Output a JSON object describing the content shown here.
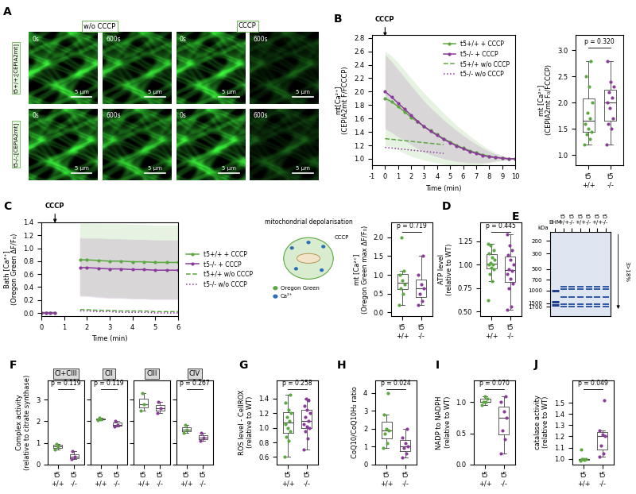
{
  "image_panel": {
    "panel": "A",
    "columns": [
      "w/o CCCP",
      "CCCP"
    ],
    "times": [
      "0s",
      "600s"
    ],
    "rows": [
      "t5+/+;[CEPIA2mt]",
      "t5-/-;[CEPIA2mt]"
    ],
    "scale_bar": "5 µm"
  },
  "schematic": {
    "title": "mitochondrial depolarisation",
    "treatment": "CCCP",
    "legend": [
      "Oregon Green",
      "Ca²⁺"
    ]
  },
  "gel": {
    "panel": "E",
    "unit": "kDa",
    "ylim": [
      150,
      2300
    ],
    "ladder": [
      1700,
      1500,
      1000,
      700,
      500,
      300,
      200
    ],
    "lanes": [
      "BHM",
      "t5\n+/+",
      "t5\n-/-",
      "t5\n+/+",
      "t5\n-/-",
      "t5\n+/+",
      "t5\n-/-"
    ],
    "gradient": "3>18%",
    "marker_bands": [
      1600,
      1450,
      1000
    ],
    "sample_bands": [
      1700,
      1550,
      1250,
      950,
      880
    ]
  },
  "chart_data": [
    {
      "type": "line",
      "panel": "B",
      "xlabel": "Time (min)",
      "ylabel": "mt[Ca²⁺]\n(CEPIA2mt F/FCCCP)",
      "xlim": [
        -1,
        10
      ],
      "xticks": [
        -1,
        0,
        1,
        2,
        3,
        4,
        5,
        6,
        7,
        8,
        9,
        10
      ],
      "ylim": [
        0.9,
        2.85
      ],
      "yticks": [
        1.0,
        1.2,
        1.4,
        1.6,
        1.8,
        2.0,
        2.2,
        2.4,
        2.6,
        2.8
      ],
      "legend": "upper right",
      "annotations": [
        {
          "text": "CCCP",
          "x": 0
        }
      ],
      "x": [
        0,
        0.5,
        1,
        1.5,
        2,
        2.5,
        3,
        3.5,
        4,
        4.5,
        5,
        5.5,
        6,
        6.5,
        7,
        7.5,
        8,
        8.5,
        9,
        9.5,
        10
      ],
      "series": [
        {
          "name": "t5+/+ + CCCP",
          "color": "#5aa83f",
          "line_style": "solid",
          "marker": "circle",
          "values": [
            1.9,
            1.85,
            1.78,
            1.7,
            1.62,
            1.55,
            1.48,
            1.42,
            1.36,
            1.3,
            1.25,
            1.2,
            1.16,
            1.12,
            1.09,
            1.06,
            1.04,
            1.02,
            1.01,
            1.0,
            1.0
          ],
          "sd": [
            0.7,
            0.68,
            0.65,
            0.62,
            0.58,
            0.54,
            0.5,
            0.46,
            0.42,
            0.38,
            0.34,
            0.3,
            0.26,
            0.22,
            0.18,
            0.14,
            0.1,
            0.07,
            0.04,
            0.02,
            0.0
          ]
        },
        {
          "name": "t5-/- + CCCP",
          "color": "#8b3a9c",
          "line_style": "solid",
          "marker": "circle",
          "values": [
            2.0,
            1.92,
            1.83,
            1.74,
            1.65,
            1.56,
            1.48,
            1.41,
            1.35,
            1.29,
            1.24,
            1.19,
            1.15,
            1.11,
            1.08,
            1.05,
            1.03,
            1.02,
            1.01,
            1.0,
            1.0
          ],
          "sd": [
            0.55,
            0.53,
            0.5,
            0.47,
            0.44,
            0.41,
            0.38,
            0.35,
            0.32,
            0.29,
            0.26,
            0.23,
            0.2,
            0.17,
            0.14,
            0.11,
            0.08,
            0.05,
            0.03,
            0.02,
            0.0
          ]
        },
        {
          "name": "t5+/+ w/o CCCP",
          "color": "#5aa83f",
          "line_style": "dashed",
          "values": [
            1.3,
            1.29,
            1.28,
            1.27,
            1.26,
            1.25,
            1.24,
            1.23,
            1.22,
            1.21,
            null,
            null,
            null,
            null,
            null,
            null,
            null,
            null,
            null,
            null,
            null
          ]
        },
        {
          "name": "t5-/- w/o CCCP",
          "color": "#8b3a9c",
          "line_style": "dotted",
          "values": [
            1.17,
            1.16,
            1.15,
            1.14,
            1.13,
            1.12,
            1.11,
            1.1,
            1.09,
            1.08,
            null,
            null,
            null,
            null,
            null,
            null,
            null,
            null,
            null,
            null,
            null
          ]
        }
      ]
    },
    {
      "type": "box",
      "ylabel": "mt [Ca²⁺]\n(CEPIA2mt F₀/FCCCP)",
      "ylim": [
        0.8,
        3.3
      ],
      "yticks": [
        1.0,
        1.5,
        2.0,
        2.5,
        3.0
      ],
      "p_label": "p = 0.320",
      "groups": [
        {
          "name": "t5\n+/+",
          "color": "#5aa83f",
          "values": [
            1.2,
            1.3,
            1.4,
            1.45,
            1.5,
            1.6,
            1.7,
            1.8,
            2.0,
            2.3,
            2.5,
            2.8
          ]
        },
        {
          "name": "t5\n-/-",
          "color": "#8b3a9c",
          "values": [
            1.2,
            1.5,
            1.6,
            1.7,
            1.9,
            2.0,
            2.1,
            2.2,
            2.3,
            2.4,
            2.8
          ]
        }
      ]
    },
    {
      "type": "line",
      "panel": "C",
      "xlabel": "Time (min)",
      "ylabel": "Bath [Ca²⁺]\n(Oregon Green ΔF/F₀)",
      "xlim": [
        0,
        6
      ],
      "xticks": [
        0,
        1,
        2,
        3,
        4,
        5,
        6
      ],
      "ylim": [
        -0.05,
        1.4
      ],
      "yticks": [
        0.0,
        0.2,
        0.4,
        0.6,
        0.8,
        1.0,
        1.2,
        1.4
      ],
      "legend": "right",
      "annotations": [
        {
          "text": "CCCP",
          "x": 0.6
        }
      ],
      "x": [
        0,
        0.2,
        0.4,
        0.6,
        1.0,
        1.7,
        2,
        2.5,
        3,
        3.5,
        4,
        4.5,
        5,
        5.5,
        6
      ],
      "series": [
        {
          "name": "t5+/+ + CCCP",
          "color": "#5aa83f",
          "line_style": "solid",
          "marker": "circle",
          "values": [
            0,
            0,
            0,
            0,
            null,
            0.82,
            0.82,
            0.81,
            0.8,
            0.8,
            0.79,
            0.79,
            0.78,
            0.78,
            0.78
          ],
          "sd": [
            0.02,
            0.02,
            0.02,
            0.02,
            null,
            0.55,
            0.56,
            0.56,
            0.57,
            0.57,
            0.57,
            0.57,
            0.57,
            0.57,
            0.57
          ]
        },
        {
          "name": "t5-/- + CCCP",
          "color": "#8b3a9c",
          "line_style": "solid",
          "marker": "circle",
          "values": [
            0,
            0,
            0,
            0,
            null,
            0.7,
            0.7,
            0.69,
            0.68,
            0.68,
            0.67,
            0.67,
            0.66,
            0.66,
            0.66
          ],
          "sd": [
            0.02,
            0.02,
            0.02,
            0.02,
            null,
            0.45,
            0.45,
            0.46,
            0.46,
            0.46,
            0.46,
            0.46,
            0.46,
            0.46,
            0.46
          ]
        },
        {
          "name": "t5+/+ w/o CCCP",
          "color": "#5aa83f",
          "line_style": "dashed",
          "values": [
            null,
            null,
            null,
            null,
            null,
            0.05,
            0.05,
            0.04,
            0.04,
            0.03,
            0.03,
            0.03,
            0.02,
            0.02,
            0.02
          ]
        },
        {
          "name": "t5-/- w/o CCCP",
          "color": "#8b3a9c",
          "line_style": "dotted",
          "values": [
            null,
            null,
            null,
            null,
            null,
            0.03,
            0.03,
            0.02,
            0.02,
            0.01,
            0.01,
            0.01,
            0.0,
            0.0,
            0.0
          ]
        }
      ]
    },
    {
      "type": "box",
      "ylabel": "mt [Ca²⁺]\n(Oregon Green max ΔF/F₀)",
      "ylim": [
        -0.1,
        2.4
      ],
      "yticks": [
        0.0,
        0.5,
        1.0,
        1.5,
        2.0
      ],
      "p_label": "p = 0.719",
      "groups": [
        {
          "name": "t5\n+/+",
          "color": "#5aa83f",
          "values": [
            0.2,
            0.5,
            0.65,
            0.75,
            0.85,
            1.0,
            1.1,
            2.0
          ]
        },
        {
          "name": "t5\n-/-",
          "color": "#8b3a9c",
          "values": [
            0.2,
            0.3,
            0.5,
            0.65,
            0.75,
            1.0,
            1.5
          ]
        }
      ]
    },
    {
      "type": "box",
      "panel": "D",
      "ylabel": "ATP level\n(relative to WT)",
      "ylim": [
        0.45,
        1.45
      ],
      "yticks": [
        {
          "value": 0.5,
          "label": "0.50"
        },
        {
          "value": 0.75,
          "label": "0.75"
        },
        {
          "value": 1.0,
          "label": "1.00"
        },
        {
          "value": 1.25,
          "label": "1.25"
        }
      ],
      "p_label": "p = 0.445",
      "groups": [
        {
          "name": "t5\n+/+",
          "color": "#5aa83f",
          "values": [
            0.62,
            0.82,
            0.9,
            0.95,
            0.97,
            1.0,
            1.0,
            1.02,
            1.05,
            1.08,
            1.12,
            1.15,
            1.2,
            1.22
          ]
        },
        {
          "name": "t5\n-/-",
          "color": "#8b3a9c",
          "values": [
            0.52,
            0.55,
            0.75,
            0.8,
            0.85,
            0.9,
            0.93,
            0.95,
            1.0,
            1.05,
            1.1,
            1.15,
            1.2,
            1.32
          ]
        }
      ]
    },
    {
      "type": "box",
      "panel": "F",
      "ylabel": "Complex activity\n(relative to citrate synthase)",
      "ylim": [
        0,
        3.9
      ],
      "yticks": [
        0,
        1,
        2,
        3
      ],
      "facets": [
        {
          "title": "CI+CIII",
          "p_label": "p = 0.119",
          "groups": [
            {
              "name": "t5\n+/+",
              "color": "#5aa83f",
              "values": [
                0.7,
                0.85,
                0.95
              ]
            },
            {
              "name": "t5\n-/-",
              "color": "#8b3a9c",
              "values": [
                0.25,
                0.35,
                0.6
              ]
            }
          ]
        },
        {
          "title": "CII",
          "p_label": "p = 0.119",
          "groups": [
            {
              "name": "t5\n+/+",
              "color": "#5aa83f",
              "values": [
                2.05,
                2.1,
                2.15
              ]
            },
            {
              "name": "t5\n-/-",
              "color": "#8b3a9c",
              "values": [
                1.75,
                1.85,
                2.0
              ]
            }
          ]
        },
        {
          "title": "CIII",
          "groups": [
            {
              "name": "t5\n+/+",
              "color": "#5aa83f",
              "values": [
                2.5,
                2.8,
                3.3
              ]
            },
            {
              "name": "t5\n-/-",
              "color": "#8b3a9c",
              "values": [
                2.4,
                2.6,
                2.9
              ]
            }
          ]
        },
        {
          "title": "CIV",
          "p_label": "p = 0.267",
          "groups": [
            {
              "name": "t5\n+/+",
              "color": "#5aa83f",
              "values": [
                1.45,
                1.6,
                1.85
              ]
            },
            {
              "name": "t5\n-/-",
              "color": "#8b3a9c",
              "values": [
                1.1,
                1.25,
                1.45
              ]
            }
          ]
        }
      ]
    },
    {
      "type": "box",
      "panel": "G",
      "ylabel": "ROS level - CellROX\n(relative to WT)",
      "ylim": [
        0.5,
        1.65
      ],
      "yticks": [
        0.6,
        0.8,
        1.0,
        1.2,
        1.4
      ],
      "p_label": "p = 0.258",
      "groups": [
        {
          "name": "t5\n+/+",
          "color": "#5aa83f",
          "values": [
            0.6,
            0.82,
            0.88,
            0.95,
            1.0,
            1.05,
            1.1,
            1.15,
            1.2,
            1.25,
            1.35,
            1.45
          ]
        },
        {
          "name": "t5\n-/-",
          "color": "#8b3a9c",
          "values": [
            0.7,
            0.85,
            0.95,
            1.0,
            1.02,
            1.05,
            1.1,
            1.15,
            1.2,
            1.25,
            1.3,
            1.38,
            1.4
          ]
        }
      ]
    },
    {
      "type": "box",
      "panel": "H",
      "ylabel": "CoQ10/CoQ10H₂ ratio",
      "ylim": [
        0,
        4.7
      ],
      "yticks": [
        0,
        1,
        2,
        3,
        4
      ],
      "p_label": "p = 0.024",
      "groups": [
        {
          "name": "t5\n+/+",
          "color": "#5aa83f",
          "values": [
            0.9,
            1.2,
            1.7,
            1.9,
            2.0,
            2.8,
            4.0
          ]
        },
        {
          "name": "t5\n-/-",
          "color": "#8b3a9c",
          "values": [
            0.4,
            0.6,
            0.9,
            1.0,
            1.2,
            1.5,
            2.0
          ]
        }
      ]
    },
    {
      "type": "box",
      "panel": "I",
      "ylabel": "NADP to NADPH\n(relative to WT)",
      "ylim": [
        0,
        1.35
      ],
      "yticks": [
        0.0,
        0.5,
        1.0
      ],
      "p_label": "p = 0.070",
      "groups": [
        {
          "name": "t5\n+/+",
          "color": "#5aa83f",
          "values": [
            0.95,
            1.0,
            1.0,
            1.05,
            1.1
          ]
        },
        {
          "name": "t5\n-/-",
          "color": "#8b3a9c",
          "values": [
            0.18,
            0.4,
            0.55,
            0.75,
            0.85,
            1.0,
            1.1
          ]
        }
      ]
    },
    {
      "type": "box",
      "panel": "J",
      "ylabel": "catalase activity\n(relative to WT)",
      "ylim": [
        0.95,
        1.7
      ],
      "yticks": [
        1.0,
        1.1,
        1.2,
        1.3,
        1.4,
        1.5
      ],
      "p_label": "p = 0.049",
      "groups": [
        {
          "name": "t5\n+/+",
          "color": "#5aa83f",
          "values": [
            0.98,
            0.99,
            1.0,
            1.0,
            1.0,
            1.08
          ]
        },
        {
          "name": "t5\n-/-",
          "color": "#8b3a9c",
          "values": [
            1.02,
            1.05,
            1.12,
            1.2,
            1.22,
            1.25,
            1.52
          ]
        }
      ]
    }
  ]
}
